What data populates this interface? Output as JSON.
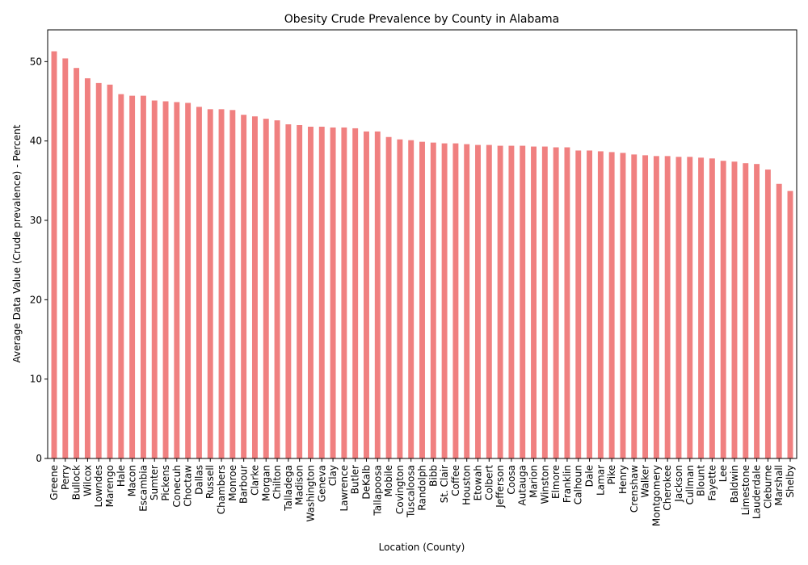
{
  "chart_data": {
    "type": "bar",
    "title": "Obesity Crude Prevalence by County in Alabama",
    "xlabel": "Location (County)",
    "ylabel": "Average Data Value (Crude prevalence) - Percent",
    "ylim": [
      0,
      54
    ],
    "yticks": [
      0,
      10,
      20,
      30,
      40,
      50
    ],
    "bar_color": "#f08080",
    "categories": [
      "Greene",
      "Perry",
      "Bullock",
      "Wilcox",
      "Lowndes",
      "Marengo",
      "Hale",
      "Macon",
      "Escambia",
      "Sumter",
      "Pickens",
      "Conecuh",
      "Choctaw",
      "Dallas",
      "Russell",
      "Chambers",
      "Monroe",
      "Barbour",
      "Clarke",
      "Morgan",
      "Chilton",
      "Talladega",
      "Madison",
      "Washington",
      "Geneva",
      "Clay",
      "Lawrence",
      "Butler",
      "DeKalb",
      "Tallapoosa",
      "Mobile",
      "Covington",
      "Tuscaloosa",
      "Randolph",
      "Bibb",
      "St. Clair",
      "Coffee",
      "Houston",
      "Etowah",
      "Colbert",
      "Jefferson",
      "Coosa",
      "Autauga",
      "Marion",
      "Winston",
      "Elmore",
      "Franklin",
      "Calhoun",
      "Dale",
      "Lamar",
      "Pike",
      "Henry",
      "Crenshaw",
      "Walker",
      "Montgomery",
      "Cherokee",
      "Jackson",
      "Cullman",
      "Blount",
      "Fayette",
      "Lee",
      "Baldwin",
      "Limestone",
      "Lauderdale",
      "Cleburne",
      "Marshall",
      "Shelby"
    ],
    "values": [
      51.3,
      50.4,
      49.2,
      47.9,
      47.3,
      47.1,
      45.9,
      45.7,
      45.7,
      45.1,
      45.0,
      44.9,
      44.8,
      44.3,
      44.0,
      44.0,
      43.9,
      43.3,
      43.1,
      42.8,
      42.6,
      42.1,
      42.0,
      41.8,
      41.8,
      41.7,
      41.7,
      41.6,
      41.2,
      41.2,
      40.5,
      40.2,
      40.1,
      39.9,
      39.8,
      39.7,
      39.7,
      39.6,
      39.5,
      39.5,
      39.4,
      39.4,
      39.4,
      39.3,
      39.3,
      39.2,
      39.2,
      38.8,
      38.8,
      38.7,
      38.6,
      38.5,
      38.3,
      38.2,
      38.1,
      38.1,
      38.0,
      38.0,
      37.9,
      37.8,
      37.5,
      37.4,
      37.2,
      37.1,
      36.4,
      34.6,
      33.7
    ]
  }
}
